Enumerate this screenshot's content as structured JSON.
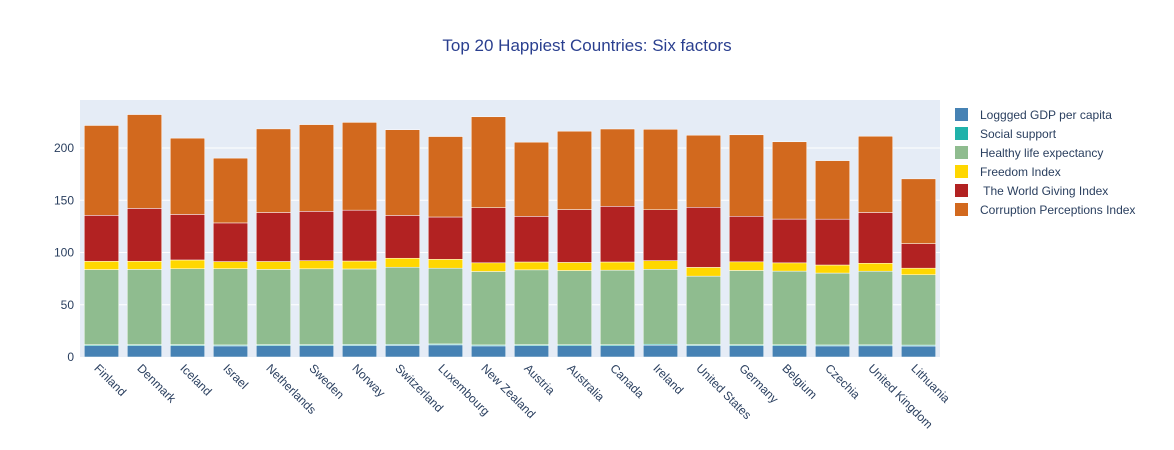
{
  "chart_data": {
    "type": "bar",
    "stacked": true,
    "title": "Top 20 Happiest Countries: Six factors",
    "xlabel": "",
    "ylabel": "",
    "ylim": [
      0,
      240
    ],
    "yticks": [
      0,
      50,
      100,
      150,
      200
    ],
    "grid": true,
    "legend_position": "right",
    "categories": [
      "Finland",
      "Denmark",
      "Iceland",
      "Israel",
      "Netherlands",
      "Sweden",
      "Norway",
      "Switzerland",
      "Luxembourg",
      "New Zealand",
      "Austria",
      "Australia",
      "Canada",
      "Ireland",
      "United States",
      "Germany",
      "Belgium",
      "Czechia",
      "United Kingdom",
      "Lithuania"
    ],
    "series": [
      {
        "name": "Loggged GDP per capita",
        "color": "#4682b4",
        "values": [
          10.8,
          10.9,
          10.9,
          10.6,
          10.9,
          10.9,
          11.0,
          11.1,
          11.6,
          10.6,
          10.9,
          10.8,
          10.8,
          11.3,
          11.0,
          10.9,
          10.8,
          10.6,
          10.7,
          10.5
        ]
      },
      {
        "name": "Social support",
        "color": "#20b2aa",
        "values": [
          1.0,
          0.95,
          0.98,
          0.94,
          0.94,
          0.93,
          0.96,
          0.94,
          0.91,
          0.95,
          0.93,
          0.94,
          0.93,
          0.95,
          0.9,
          0.9,
          0.91,
          0.94,
          0.93,
          0.93
        ]
      },
      {
        "name": "Healthy life expectancy",
        "color": "#8fbc8f",
        "values": [
          71.9,
          72.0,
          72.6,
          73.0,
          72.0,
          72.6,
          72.3,
          73.9,
          72.5,
          70.3,
          71.6,
          71.0,
          71.4,
          71.7,
          65.5,
          71.0,
          70.5,
          68.8,
          70.5,
          67.3
        ]
      },
      {
        "name": "Freedom Index",
        "color": "#ffd700",
        "values": [
          7.9,
          7.8,
          8.4,
          6.8,
          7.6,
          7.8,
          7.6,
          8.6,
          8.5,
          8.3,
          7.5,
          7.8,
          7.8,
          8.3,
          8.4,
          8.3,
          7.9,
          7.7,
          7.6,
          6.3
        ]
      },
      {
        "name": " The World Giving Index",
        "color": "#b22222",
        "values": [
          44.0,
          50.6,
          43.6,
          37.0,
          46.9,
          47.2,
          48.7,
          41.0,
          40.5,
          52.8,
          43.7,
          50.6,
          53.3,
          48.7,
          57.5,
          43.6,
          41.9,
          43.9,
          48.6,
          23.5
        ]
      },
      {
        "name": "Corruption Perceptions Index",
        "color": "#d2691e",
        "values": [
          86.0,
          89.8,
          73.0,
          62.0,
          80.0,
          83.0,
          84.0,
          82.0,
          77.0,
          87.0,
          71.0,
          75.0,
          74.0,
          77.0,
          69.0,
          78.0,
          74.0,
          56.0,
          73.0,
          62.0
        ]
      }
    ]
  }
}
